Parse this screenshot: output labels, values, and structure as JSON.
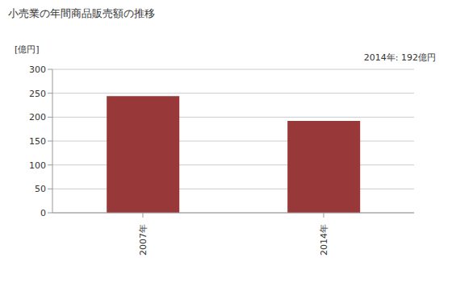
{
  "chart_data": {
    "type": "bar",
    "title": "小売業の年間商品販売額の推移",
    "y_label": "[億円]",
    "annotation": "2014年: 192億円",
    "categories": [
      "2007年",
      "2014年"
    ],
    "values": [
      244,
      192
    ],
    "color": "#993838",
    "ylim": [
      0,
      300
    ],
    "yticks": [
      0,
      50,
      100,
      150,
      200,
      250,
      300
    ],
    "grid": true
  }
}
